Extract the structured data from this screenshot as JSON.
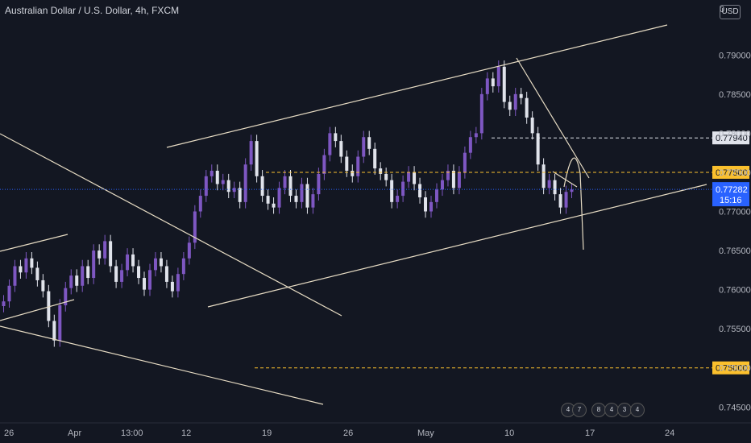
{
  "header": {
    "title": "Australian Dollar / U.S. Dollar, 4h, FXCM",
    "currency": "USD"
  },
  "colors": {
    "background": "#131722",
    "up": "#7e57c2",
    "down": "#e0e3eb",
    "trendline": "#e7dcc4",
    "current": "#2962ff",
    "level": "#fbc02d"
  },
  "chart_data": {
    "type": "candlestick",
    "symbol": "AUDUSD",
    "timeframe": "4h",
    "ylim": [
      0.744,
      0.796
    ],
    "yticks": [
      "0.79000",
      "0.78500",
      "0.78000",
      "0.77500",
      "0.77000",
      "0.76500",
      "0.76000",
      "0.75500",
      "0.75000",
      "0.74500"
    ],
    "ytick_values": [
      0.79,
      0.785,
      0.78,
      0.775,
      0.77,
      0.765,
      0.76,
      0.755,
      0.75,
      0.745
    ],
    "xticks": [
      "26",
      "Apr",
      "13:00",
      "12",
      "19",
      "26",
      "May",
      "10",
      "17",
      "24"
    ],
    "current_price": {
      "value": 0.77282,
      "label": "0.77282",
      "countdown": "15:16"
    },
    "levels": [
      {
        "value": 0.7794,
        "label": "0.77940",
        "style": "dashed-white"
      },
      {
        "value": 0.775,
        "label": "0.77500",
        "style": "dashed-yellow"
      },
      {
        "value": 0.75,
        "label": "0.75000",
        "style": "dashed-yellow"
      }
    ],
    "candles_close_path": [
      0.7585,
      0.7605,
      0.763,
      0.7622,
      0.764,
      0.7628,
      0.7612,
      0.7598,
      0.756,
      0.7535,
      0.758,
      0.7602,
      0.7618,
      0.7605,
      0.763,
      0.7615,
      0.765,
      0.764,
      0.7662,
      0.763,
      0.761,
      0.7625,
      0.7645,
      0.763,
      0.7615,
      0.76,
      0.7625,
      0.764,
      0.763,
      0.761,
      0.7598,
      0.762,
      0.764,
      0.766,
      0.77,
      0.772,
      0.7745,
      0.7752,
      0.7735,
      0.774,
      0.7725,
      0.773,
      0.7712,
      0.776,
      0.779,
      0.7745,
      0.772,
      0.771,
      0.7705,
      0.773,
      0.7745,
      0.772,
      0.7712,
      0.7735,
      0.7705,
      0.7722,
      0.7748,
      0.7772,
      0.78,
      0.779,
      0.777,
      0.7752,
      0.7745,
      0.777,
      0.7795,
      0.778,
      0.7755,
      0.7748,
      0.774,
      0.7712,
      0.772,
      0.7738,
      0.775,
      0.7735,
      0.7718,
      0.77,
      0.7712,
      0.7728,
      0.774,
      0.7752,
      0.773,
      0.775,
      0.7775,
      0.7795,
      0.78,
      0.785,
      0.787,
      0.786,
      0.7885,
      0.784,
      0.783,
      0.785,
      0.7845,
      0.782,
      0.78,
      0.776,
      0.773,
      0.774,
      0.7722,
      0.7705,
      0.7725,
      0.7728
    ]
  },
  "events": [
    "4",
    "7",
    "8",
    "4",
    "3",
    "4"
  ]
}
